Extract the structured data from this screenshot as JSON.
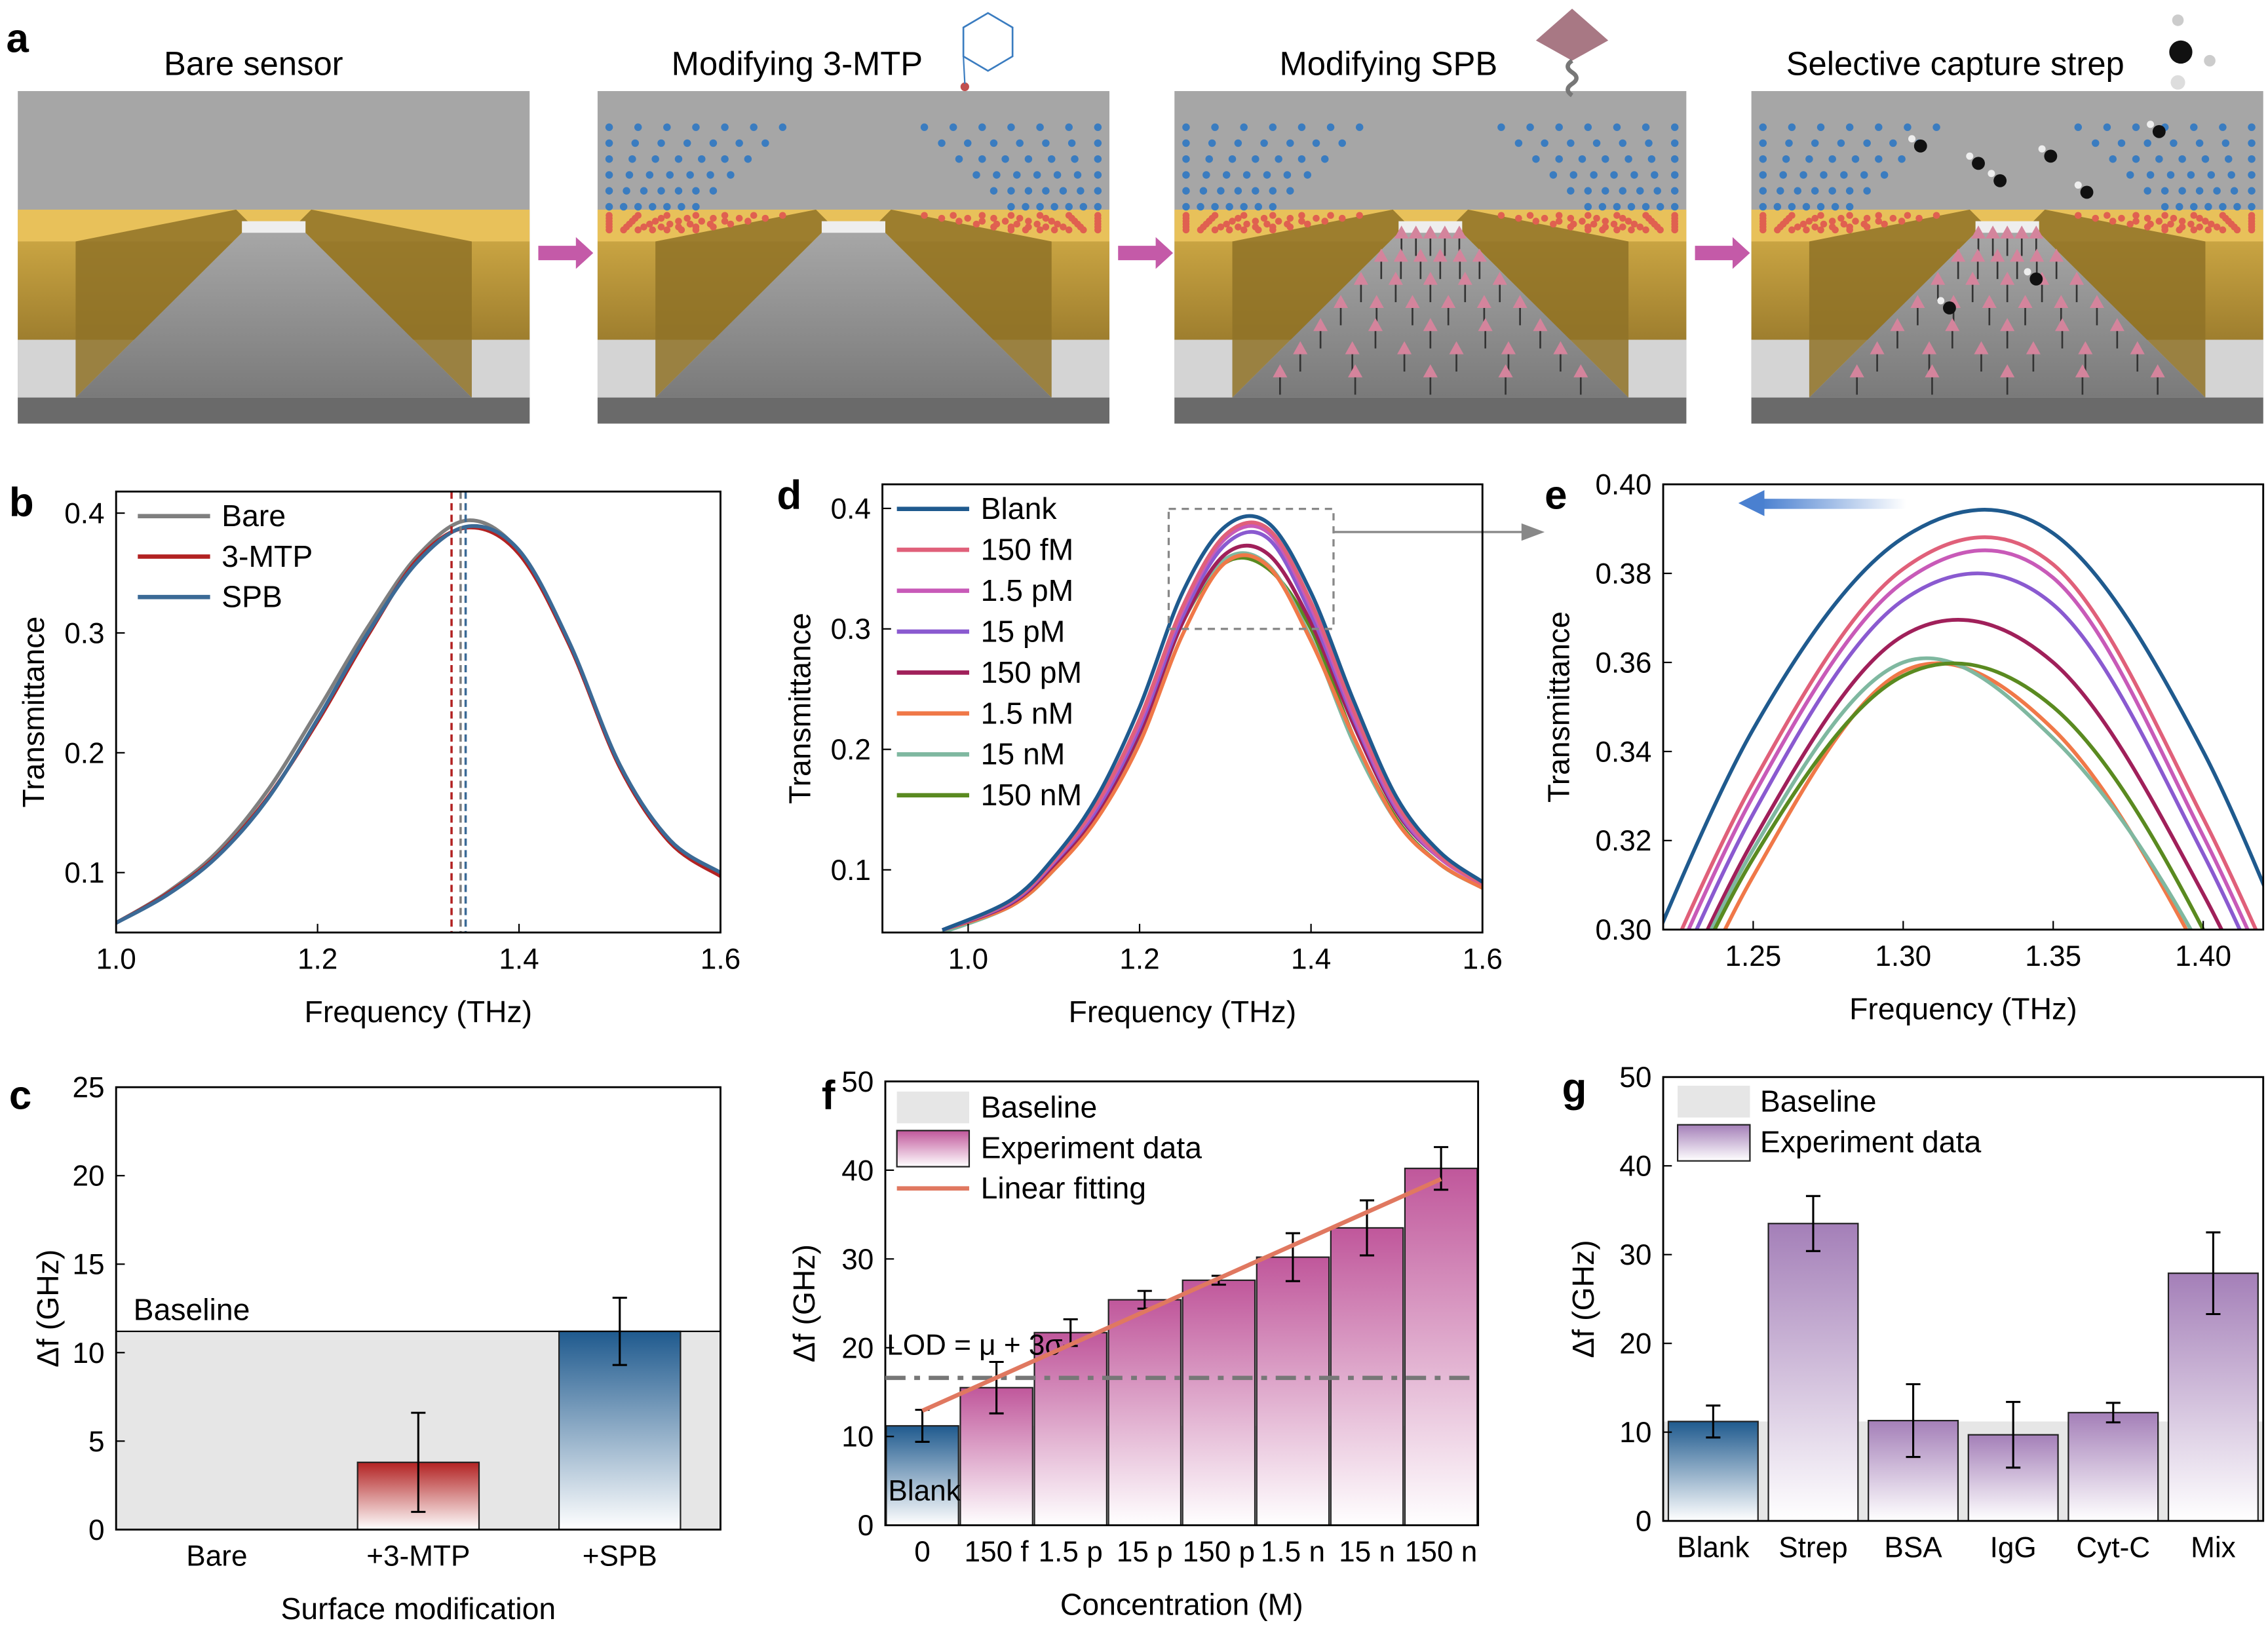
{
  "panel_labels": {
    "a": "a",
    "b": "b",
    "c": "c",
    "d": "d",
    "e": "e",
    "f": "f",
    "g": "g"
  },
  "panel_a": {
    "steps": [
      {
        "title": "Bare sensor"
      },
      {
        "title": "Modifying 3-MTP"
      },
      {
        "title": "Modifying SPB"
      },
      {
        "title": "Selective capture strep"
      }
    ],
    "colors": {
      "arrow": "#c45aa8",
      "gold": "#b8963a",
      "molecule_blue": "#3a7cc0",
      "thiol_red": "#e06050",
      "spb_pink": "#d4849c"
    }
  },
  "chart_data": [
    {
      "panel": "b",
      "type": "line",
      "xlabel": "Frequency (THz)",
      "ylabel": "Transmittance",
      "xlim": [
        1.0,
        1.6
      ],
      "ylim": [
        0.05,
        0.418
      ],
      "xticks": [
        "1.0",
        "1.2",
        "1.4",
        "1.6"
      ],
      "yticks": [
        "0.1",
        "0.2",
        "0.3",
        "0.4"
      ],
      "legend": "top-left",
      "series": [
        {
          "name": "Bare",
          "color": "#7f7f7f",
          "x": [
            1.0,
            1.05,
            1.1,
            1.15,
            1.2,
            1.25,
            1.3,
            1.35,
            1.4,
            1.45,
            1.5,
            1.55,
            1.6
          ],
          "y": [
            0.058,
            0.083,
            0.117,
            0.168,
            0.235,
            0.305,
            0.365,
            0.394,
            0.368,
            0.29,
            0.19,
            0.125,
            0.098
          ]
        },
        {
          "name": "3-MTP",
          "color": "#b22222",
          "x": [
            1.0,
            1.05,
            1.1,
            1.15,
            1.2,
            1.25,
            1.3,
            1.35,
            1.4,
            1.45,
            1.5,
            1.55,
            1.6
          ],
          "y": [
            0.058,
            0.082,
            0.114,
            0.162,
            0.226,
            0.298,
            0.362,
            0.388,
            0.366,
            0.29,
            0.188,
            0.125,
            0.097
          ]
        },
        {
          "name": "SPB",
          "color": "#3b6a96",
          "x": [
            1.0,
            1.05,
            1.1,
            1.15,
            1.2,
            1.25,
            1.3,
            1.35,
            1.4,
            1.45,
            1.5,
            1.55,
            1.6
          ],
          "y": [
            0.058,
            0.081,
            0.113,
            0.161,
            0.228,
            0.3,
            0.36,
            0.389,
            0.369,
            0.292,
            0.19,
            0.127,
            0.1
          ]
        }
      ],
      "peak_markers": [
        {
          "x": 1.333,
          "color": "#b22222"
        },
        {
          "x": 1.342,
          "color": "#7f7f7f"
        },
        {
          "x": 1.347,
          "color": "#3b6a96"
        }
      ]
    },
    {
      "panel": "c",
      "type": "bar",
      "xlabel": "Surface modification",
      "ylabel": "Δf (GHz)",
      "ylim": [
        0,
        25
      ],
      "yticks": [
        "0",
        "5",
        "10",
        "15",
        "20",
        "25"
      ],
      "categories": [
        "Bare",
        "+3-MTP",
        "+SPB"
      ],
      "values": [
        0,
        3.8,
        11.2
      ],
      "errors": [
        0,
        2.8,
        1.9
      ],
      "colors": [
        "#b22222",
        "#b22222",
        "#1f5a8e"
      ],
      "baseline": {
        "label": "Baseline",
        "value": 11.2
      }
    },
    {
      "panel": "d",
      "type": "line",
      "xlabel": "Frequency (THz)",
      "ylabel": "Transmittance",
      "xlim": [
        0.9,
        1.6
      ],
      "ylim": [
        0.048,
        0.42
      ],
      "xticks": [
        "1.0",
        "1.2",
        "1.4",
        "1.6"
      ],
      "yticks": [
        "0.1",
        "0.2",
        "0.3",
        "0.4"
      ],
      "legend": "top-left",
      "x": [
        0.97,
        1.05,
        1.1,
        1.15,
        1.2,
        1.25,
        1.3,
        1.35,
        1.4,
        1.45,
        1.5,
        1.55,
        1.6
      ],
      "series": [
        {
          "name": "Blank",
          "color": "#1f5a8e",
          "y": [
            0.05,
            0.075,
            0.11,
            0.16,
            0.235,
            0.33,
            0.385,
            0.388,
            0.33,
            0.24,
            0.16,
            0.115,
            0.09
          ]
        },
        {
          "name": "150 fM",
          "color": "#e0607a",
          "y": [
            0.05,
            0.074,
            0.108,
            0.155,
            0.225,
            0.318,
            0.378,
            0.383,
            0.322,
            0.232,
            0.155,
            0.112,
            0.088
          ]
        },
        {
          "name": "1.5 pM",
          "color": "#c85ab8",
          "y": [
            0.05,
            0.074,
            0.107,
            0.153,
            0.222,
            0.315,
            0.375,
            0.38,
            0.318,
            0.228,
            0.152,
            0.11,
            0.088
          ]
        },
        {
          "name": "15 pM",
          "color": "#8a5ad0",
          "y": [
            0.05,
            0.073,
            0.106,
            0.15,
            0.218,
            0.31,
            0.37,
            0.375,
            0.312,
            0.225,
            0.15,
            0.11,
            0.09
          ]
        },
        {
          "name": "150 pM",
          "color": "#a0205a",
          "y": [
            0.05,
            0.072,
            0.104,
            0.147,
            0.213,
            0.305,
            0.362,
            0.362,
            0.305,
            0.22,
            0.148,
            0.11,
            0.09
          ]
        },
        {
          "name": "1.5 nM",
          "color": "#f07848",
          "y": [
            0.05,
            0.07,
            0.1,
            0.142,
            0.205,
            0.295,
            0.355,
            0.352,
            0.29,
            0.21,
            0.14,
            0.105,
            0.085
          ]
        },
        {
          "name": "15 nM",
          "color": "#7fb8a0",
          "y": [
            0.048,
            0.07,
            0.1,
            0.143,
            0.21,
            0.305,
            0.358,
            0.353,
            0.292,
            0.205,
            0.14,
            0.105,
            0.085
          ]
        },
        {
          "name": "150 nM",
          "color": "#5a8a20",
          "y": [
            0.05,
            0.07,
            0.1,
            0.144,
            0.21,
            0.305,
            0.355,
            0.35,
            0.3,
            0.21,
            0.142,
            0.105,
            0.085
          ]
        }
      ]
    },
    {
      "panel": "e",
      "type": "line",
      "xlabel": "Frequency (THz)",
      "ylabel": "Transmittance",
      "xlim": [
        1.22,
        1.42
      ],
      "ylim": [
        0.3,
        0.4
      ],
      "xticks": [
        "1.25",
        "1.30",
        "1.35",
        "1.40"
      ],
      "yticks": [
        "0.30",
        "0.32",
        "0.34",
        "0.36",
        "0.38",
        "0.40"
      ],
      "x": [
        1.2,
        1.25,
        1.3,
        1.35,
        1.4,
        1.45
      ],
      "series": [
        {
          "name": "Blank",
          "color": "#1f5a8e",
          "y": [
            0.27,
            0.345,
            0.388,
            0.389,
            0.34,
            0.26
          ]
        },
        {
          "name": "150 fM",
          "color": "#e0607a",
          "y": [
            0.26,
            0.333,
            0.381,
            0.382,
            0.325,
            0.25
          ]
        },
        {
          "name": "1.5 pM",
          "color": "#c85ab8",
          "y": [
            0.256,
            0.33,
            0.378,
            0.379,
            0.321,
            0.246
          ]
        },
        {
          "name": "15 pM",
          "color": "#8a5ad0",
          "y": [
            0.252,
            0.326,
            0.374,
            0.373,
            0.317,
            0.242
          ]
        },
        {
          "name": "150 pM",
          "color": "#a0205a",
          "y": [
            0.248,
            0.32,
            0.366,
            0.36,
            0.308,
            0.235
          ]
        },
        {
          "name": "1.5 nM",
          "color": "#f07848",
          "y": [
            0.24,
            0.312,
            0.358,
            0.345,
            0.293,
            0.22
          ]
        },
        {
          "name": "15 nM",
          "color": "#7fb8a0",
          "y": [
            0.246,
            0.318,
            0.36,
            0.343,
            0.295,
            0.22
          ]
        },
        {
          "name": "150 nM",
          "color": "#5a8a20",
          "y": [
            0.246,
            0.316,
            0.357,
            0.35,
            0.3,
            0.22
          ]
        }
      ],
      "shift_arrow_color": "#4a80d0"
    },
    {
      "panel": "f",
      "type": "bar",
      "xlabel": "Concentration (M)",
      "ylabel": "Δf (GHz)",
      "ylim": [
        0,
        50
      ],
      "yticks": [
        "0",
        "10",
        "20",
        "30",
        "40",
        "50"
      ],
      "categories": [
        "0",
        "150 f",
        "1.5 p",
        "15 p",
        "150 p",
        "1.5 n",
        "15 n",
        "150 n"
      ],
      "values": [
        11.2,
        15.5,
        21.7,
        25.4,
        27.6,
        30.2,
        33.5,
        40.2
      ],
      "errors": [
        1.8,
        2.9,
        1.5,
        1.0,
        0.5,
        2.7,
        3.1,
        2.4
      ],
      "colors": [
        "#1f5a8e",
        "#c0579b",
        "#c0579b",
        "#c0579b",
        "#c0579b",
        "#c0579b",
        "#c0579b",
        "#c0579b"
      ],
      "baseline": {
        "label": "Baseline",
        "value": 11.2
      },
      "legend": [
        "Baseline",
        "Experiment data",
        "Linear fitting"
      ],
      "fit": {
        "label": "Linear fitting",
        "color": "#e07860",
        "start": 12.9,
        "end": 39.0
      },
      "lod": {
        "label": "LOD = μ + 3σ",
        "value": 16.6
      },
      "blank_label": "Blank"
    },
    {
      "panel": "g",
      "type": "bar",
      "xlabel": "",
      "ylabel": "Δf (GHz)",
      "ylim": [
        0,
        50
      ],
      "yticks": [
        "0",
        "10",
        "20",
        "30",
        "40",
        "50"
      ],
      "categories": [
        "Blank",
        "Strep",
        "BSA",
        "IgG",
        "Cyt-C",
        "Mix"
      ],
      "values": [
        11.2,
        33.5,
        11.3,
        9.7,
        12.2,
        27.9
      ],
      "errors": [
        1.8,
        3.1,
        4.1,
        3.7,
        1.1,
        4.6
      ],
      "colors": [
        "#1f5a8e",
        "#a47fb8",
        "#a47fb8",
        "#a47fb8",
        "#a47fb8",
        "#a47fb8"
      ],
      "baseline": {
        "label": "Baseline",
        "value": 11.2
      },
      "legend": [
        "Baseline",
        "Experiment data"
      ]
    }
  ]
}
